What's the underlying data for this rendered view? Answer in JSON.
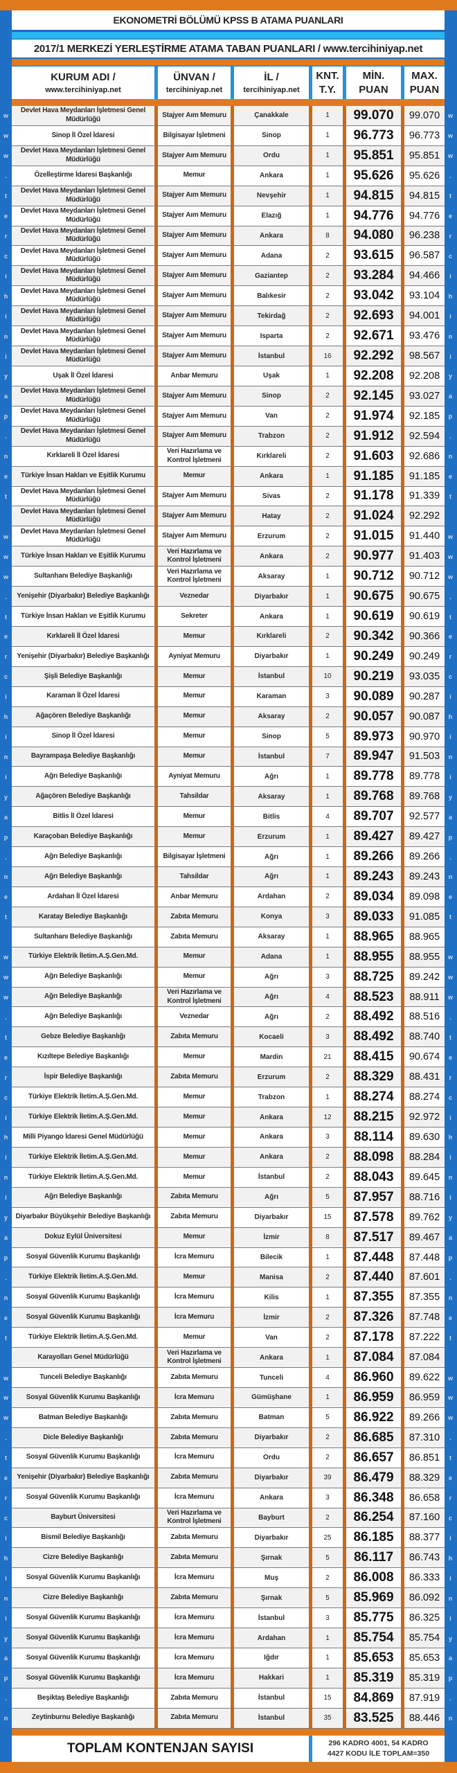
{
  "title": "EKONOMETRİ BÖLÜMÜ KPSS B ATAMA PUANLARI",
  "subtitle": "2017/1 MERKEZİ YERLEŞTİRME ATAMA TABAN PUANLARI / www.tercihiniyap.net",
  "side_watermark": "www.tercihiniyap.net",
  "colors": {
    "orange": "#e07a1e",
    "blue": "#1f6fc5",
    "light_blue": "#29b5ef"
  },
  "header": {
    "kurum": [
      "KURUM ADI /",
      "www.tercihiniyap.net"
    ],
    "unvan": [
      "ÜNVAN /",
      "tercihiniyap.net"
    ],
    "il": [
      "İL /",
      "tercihiniyap.net"
    ],
    "kont": [
      "KNT.",
      "T.Y."
    ],
    "min": [
      "MİN.",
      "PUAN"
    ],
    "max": [
      "MAX.",
      "PUAN"
    ]
  },
  "rows": [
    [
      "Devlet Hava Meydanları İşletmesi Genel Müdürlüğü",
      "Stajyer Aım Memuru",
      "Çanakkale",
      "1",
      "99.070",
      "99.070"
    ],
    [
      "Sinop İl Özel İdaresi",
      "Bilgisayar İşletmeni",
      "Sinop",
      "1",
      "96.773",
      "96.773"
    ],
    [
      "Devlet Hava Meydanları İşletmesi Genel Müdürlüğü",
      "Stajyer Aım Memuru",
      "Ordu",
      "1",
      "95.851",
      "95.851"
    ],
    [
      "Özelleştirme İdaresi Başkanlığı",
      "Memur",
      "Ankara",
      "1",
      "95.626",
      "95.626"
    ],
    [
      "Devlet Hava Meydanları İşletmesi Genel Müdürlüğü",
      "Stajyer Aım Memuru",
      "Nevşehir",
      "1",
      "94.815",
      "94.815"
    ],
    [
      "Devlet Hava Meydanları İşletmesi Genel Müdürlüğü",
      "Stajyer Aım Memuru",
      "Elazığ",
      "1",
      "94.776",
      "94.776"
    ],
    [
      "Devlet Hava Meydanları İşletmesi Genel Müdürlüğü",
      "Stajyer Aım Memuru",
      "Ankara",
      "8",
      "94.080",
      "96.238"
    ],
    [
      "Devlet Hava Meydanları İşletmesi Genel Müdürlüğü",
      "Stajyer Aım Memuru",
      "Adana",
      "2",
      "93.615",
      "96.587"
    ],
    [
      "Devlet Hava Meydanları İşletmesi Genel Müdürlüğü",
      "Stajyer Aım Memuru",
      "Gaziantep",
      "2",
      "93.284",
      "94.466"
    ],
    [
      "Devlet Hava Meydanları İşletmesi Genel Müdürlüğü",
      "Stajyer Aım Memuru",
      "Balıkesir",
      "2",
      "93.042",
      "93.104"
    ],
    [
      "Devlet Hava Meydanları İşletmesi Genel Müdürlüğü",
      "Stajyer Aım Memuru",
      "Tekirdağ",
      "2",
      "92.693",
      "94.001"
    ],
    [
      "Devlet Hava Meydanları İşletmesi Genel Müdürlüğü",
      "Stajyer Aım Memuru",
      "Isparta",
      "2",
      "92.671",
      "93.476"
    ],
    [
      "Devlet Hava Meydanları İşletmesi Genel Müdürlüğü",
      "Stajyer Aım Memuru",
      "İstanbul",
      "16",
      "92.292",
      "98.567"
    ],
    [
      "Uşak İl Özel İdaresi",
      "Anbar Memuru",
      "Uşak",
      "1",
      "92.208",
      "92.208"
    ],
    [
      "Devlet Hava Meydanları İşletmesi Genel Müdürlüğü",
      "Stajyer Aım Memuru",
      "Sinop",
      "2",
      "92.145",
      "93.027"
    ],
    [
      "Devlet Hava Meydanları İşletmesi Genel Müdürlüğü",
      "Stajyer Aım Memuru",
      "Van",
      "2",
      "91.974",
      "92.185"
    ],
    [
      "Devlet Hava Meydanları İşletmesi Genel Müdürlüğü",
      "Stajyer Aım Memuru",
      "Trabzon",
      "2",
      "91.912",
      "92.594"
    ],
    [
      "Kırklareli İl Özel İdaresi",
      "Veri Hazırlama ve Kontrol İşletmeni",
      "Kırklareli",
      "2",
      "91.603",
      "92.686"
    ],
    [
      "Türkiye İnsan Hakları ve Eşitlik Kurumu",
      "Memur",
      "Ankara",
      "1",
      "91.185",
      "91.185"
    ],
    [
      "Devlet Hava Meydanları İşletmesi Genel Müdürlüğü",
      "Stajyer Aım Memuru",
      "Sivas",
      "2",
      "91.178",
      "91.339"
    ],
    [
      "Devlet Hava Meydanları İşletmesi Genel Müdürlüğü",
      "Stajyer Aım Memuru",
      "Hatay",
      "2",
      "91.024",
      "92.292"
    ],
    [
      "Devlet Hava Meydanları İşletmesi Genel Müdürlüğü",
      "Stajyer Aım Memuru",
      "Erzurum",
      "2",
      "91.015",
      "91.440"
    ],
    [
      "Türkiye İnsan Hakları ve Eşitlik Kurumu",
      "Veri Hazırlama ve Kontrol İşletmeni",
      "Ankara",
      "2",
      "90.977",
      "91.403"
    ],
    [
      "Sultanhanı Belediye Başkanlığı",
      "Veri Hazırlama ve Kontrol İşletmeni",
      "Aksaray",
      "1",
      "90.712",
      "90.712"
    ],
    [
      "Yenişehir (Diyarbakır) Belediye Başkanlığı",
      "Veznedar",
      "Diyarbakır",
      "1",
      "90.675",
      "90.675"
    ],
    [
      "Türkiye İnsan Hakları ve Eşitlik Kurumu",
      "Sekreter",
      "Ankara",
      "1",
      "90.619",
      "90.619"
    ],
    [
      "Kırklareli İl Özel İdaresi",
      "Memur",
      "Kırklareli",
      "2",
      "90.342",
      "90.366"
    ],
    [
      "Yenişehir (Diyarbakır) Belediye Başkanlığı",
      "Ayniyat Memuru",
      "Diyarbakır",
      "1",
      "90.249",
      "90.249"
    ],
    [
      "Şişli Belediye Başkanlığı",
      "Memur",
      "İstanbul",
      "10",
      "90.219",
      "93.035"
    ],
    [
      "Karaman İl Özel İdaresi",
      "Memur",
      "Karaman",
      "3",
      "90.089",
      "90.287"
    ],
    [
      "Ağaçören Belediye Başkanlığı",
      "Memur",
      "Aksaray",
      "2",
      "90.057",
      "90.087"
    ],
    [
      "Sinop İl Özel İdaresi",
      "Memur",
      "Sinop",
      "5",
      "89.973",
      "90.970"
    ],
    [
      "Bayrampaşa Belediye Başkanlığı",
      "Memur",
      "İstanbul",
      "7",
      "89.947",
      "91.503"
    ],
    [
      "Ağrı Belediye Başkanlığı",
      "Ayniyat Memuru",
      "Ağrı",
      "1",
      "89.778",
      "89.778"
    ],
    [
      "Ağaçören Belediye Başkanlığı",
      "Tahsildar",
      "Aksaray",
      "1",
      "89.768",
      "89.768"
    ],
    [
      "Bitlis İl Özel İdaresi",
      "Memur",
      "Bitlis",
      "4",
      "89.707",
      "92.577"
    ],
    [
      "Karaçoban Belediye Başkanlığı",
      "Memur",
      "Erzurum",
      "1",
      "89.427",
      "89.427"
    ],
    [
      "Ağrı Belediye Başkanlığı",
      "Bilgisayar İşletmeni",
      "Ağrı",
      "1",
      "89.266",
      "89.266"
    ],
    [
      "Ağrı Belediye Başkanlığı",
      "Tahsildar",
      "Ağrı",
      "1",
      "89.243",
      "89.243"
    ],
    [
      "Ardahan İl Özel İdaresi",
      "Anbar Memuru",
      "Ardahan",
      "2",
      "89.034",
      "89.098"
    ],
    [
      "Karatay Belediye Başkanlığı",
      "Zabıta Memuru",
      "Konya",
      "3",
      "89.033",
      "91.085"
    ],
    [
      "Sultanhanı Belediye Başkanlığı",
      "Zabıta Memuru",
      "Aksaray",
      "1",
      "88.965",
      "88.965"
    ],
    [
      "Türkiye Elektrik İletim.A.Ş.Gen.Md.",
      "Memur",
      "Adana",
      "1",
      "88.955",
      "88.955"
    ],
    [
      "Ağrı Belediye Başkanlığı",
      "Memur",
      "Ağrı",
      "3",
      "88.725",
      "89.242"
    ],
    [
      "Ağrı Belediye Başkanlığı",
      "Veri Hazırlama ve Kontrol İşletmeni",
      "Ağrı",
      "4",
      "88.523",
      "88.911"
    ],
    [
      "Ağrı Belediye Başkanlığı",
      "Veznedar",
      "Ağrı",
      "2",
      "88.492",
      "88.516"
    ],
    [
      "Gebze Belediye Başkanlığı",
      "Zabıta Memuru",
      "Kocaeli",
      "3",
      "88.492",
      "88.740"
    ],
    [
      "Kızıltepe Belediye Başkanlığı",
      "Memur",
      "Mardin",
      "21",
      "88.415",
      "90.674"
    ],
    [
      "İspir Belediye Başkanlığı",
      "Zabıta Memuru",
      "Erzurum",
      "2",
      "88.329",
      "88.431"
    ],
    [
      "Türkiye Elektrik İletim.A.Ş.Gen.Md.",
      "Memur",
      "Trabzon",
      "1",
      "88.274",
      "88.274"
    ],
    [
      "Türkiye Elektrik İletim.A.Ş.Gen.Md.",
      "Memur",
      "Ankara",
      "12",
      "88.215",
      "92.972"
    ],
    [
      "Milli Piyango İdaresi Genel Müdürlüğü",
      "Memur",
      "Ankara",
      "3",
      "88.114",
      "89.630"
    ],
    [
      "Türkiye Elektrik İletim.A.Ş.Gen.Md.",
      "Memur",
      "Ankara",
      "2",
      "88.098",
      "88.284"
    ],
    [
      "Türkiye Elektrik İletim.A.Ş.Gen.Md.",
      "Memur",
      "İstanbul",
      "2",
      "88.043",
      "89.645"
    ],
    [
      "Ağrı Belediye Başkanlığı",
      "Zabıta Memuru",
      "Ağrı",
      "5",
      "87.957",
      "88.716"
    ],
    [
      "Diyarbakır Büyükşehir Belediye Başkanlığı",
      "Zabıta Memuru",
      "Diyarbakır",
      "15",
      "87.578",
      "89.762"
    ],
    [
      "Dokuz Eylül Üniversitesi",
      "Memur",
      "İzmir",
      "8",
      "87.517",
      "89.467"
    ],
    [
      "Sosyal Güvenlik Kurumu Başkanlığı",
      "İcra Memuru",
      "Bilecik",
      "1",
      "87.448",
      "87.448"
    ],
    [
      "Türkiye Elektrik İletim.A.Ş.Gen.Md.",
      "Memur",
      "Manisa",
      "2",
      "87.440",
      "87.601"
    ],
    [
      "Sosyal Güvenlik Kurumu Başkanlığı",
      "İcra Memuru",
      "Kilis",
      "1",
      "87.355",
      "87.355"
    ],
    [
      "Sosyal Güvenlik Kurumu Başkanlığı",
      "İcra Memuru",
      "İzmir",
      "2",
      "87.326",
      "87.748"
    ],
    [
      "Türkiye Elektrik İletim.A.Ş.Gen.Md.",
      "Memur",
      "Van",
      "2",
      "87.178",
      "87.222"
    ],
    [
      "Karayolları Genel Müdürlüğü",
      "Veri Hazırlama ve Kontrol İşletmeni",
      "Ankara",
      "1",
      "87.084",
      "87.084"
    ],
    [
      "Tunceli Belediye Başkanlığı",
      "Zabıta Memuru",
      "Tunceli",
      "4",
      "86.960",
      "89.622"
    ],
    [
      "Sosyal Güvenlik Kurumu Başkanlığı",
      "İcra Memuru",
      "Gümüşhane",
      "1",
      "86.959",
      "86.959"
    ],
    [
      "Batman Belediye Başkanlığı",
      "Zabıta Memuru",
      "Batman",
      "5",
      "86.922",
      "89.266"
    ],
    [
      "Dicle Belediye Başkanlığı",
      "Zabıta Memuru",
      "Diyarbakır",
      "2",
      "86.685",
      "87.310"
    ],
    [
      "Sosyal Güvenlik Kurumu Başkanlığı",
      "İcra Memuru",
      "Ordu",
      "2",
      "86.657",
      "86.851"
    ],
    [
      "Yenişehir (Diyarbakır) Belediye Başkanlığı",
      "Zabıta Memuru",
      "Diyarbakır",
      "39",
      "86.479",
      "88.329"
    ],
    [
      "Sosyal Güvenlik Kurumu Başkanlığı",
      "İcra Memuru",
      "Ankara",
      "3",
      "86.348",
      "86.658"
    ],
    [
      "Bayburt Üniversitesi",
      "Veri Hazırlama ve Kontrol İşletmeni",
      "Bayburt",
      "2",
      "86.254",
      "87.160"
    ],
    [
      "Bismil Belediye Başkanlığı",
      "Zabıta Memuru",
      "Diyarbakır",
      "25",
      "86.185",
      "88.377"
    ],
    [
      "Cizre Belediye Başkanlığı",
      "Zabıta Memuru",
      "Şırnak",
      "5",
      "86.117",
      "86.743"
    ],
    [
      "Sosyal Güvenlik Kurumu Başkanlığı",
      "İcra Memuru",
      "Muş",
      "2",
      "86.008",
      "86.333"
    ],
    [
      "Cizre Belediye Başkanlığı",
      "Zabıta Memuru",
      "Şırnak",
      "5",
      "85.969",
      "86.092"
    ],
    [
      "Sosyal Güvenlik Kurumu Başkanlığı",
      "İcra Memuru",
      "İstanbul",
      "3",
      "85.775",
      "86.325"
    ],
    [
      "Sosyal Güvenlik Kurumu Başkanlığı",
      "İcra Memuru",
      "Ardahan",
      "1",
      "85.754",
      "85.754"
    ],
    [
      "Sosyal Güvenlik Kurumu Başkanlığı",
      "İcra Memuru",
      "Iğdır",
      "1",
      "85.653",
      "85.653"
    ],
    [
      "Sosyal Güvenlik Kurumu Başkanlığı",
      "İcra Memuru",
      "Hakkari",
      "1",
      "85.319",
      "85.319"
    ],
    [
      "Beşiktaş Belediye Başkanlığı",
      "Zabıta Memuru",
      "İstanbul",
      "15",
      "84.869",
      "87.919"
    ],
    [
      "Zeytinburnu Belediye Başkanlığı",
      "Zabıta Memuru",
      "İstanbul",
      "35",
      "83.525",
      "88.446"
    ]
  ],
  "total": {
    "label": "TOPLAM KONTENJAN SAYISI",
    "value_line1": "296 KADRO 4001, 54 KADRO",
    "value_line2": "4427 KODU İLE TOPLAM=350"
  }
}
